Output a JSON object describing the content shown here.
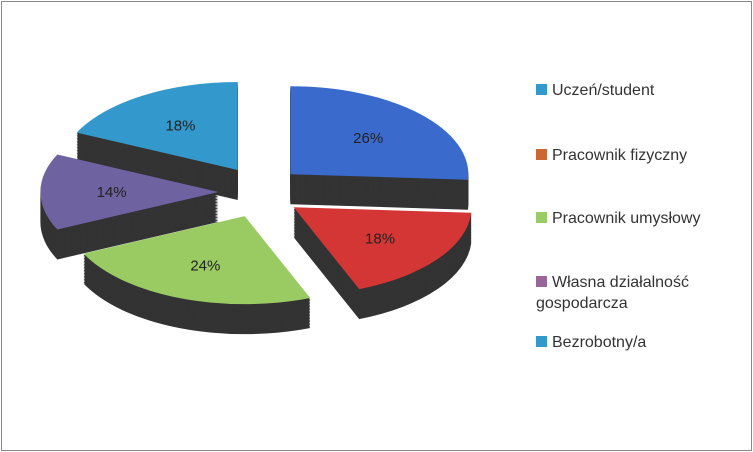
{
  "chart_data": {
    "type": "pie",
    "style": "3d-exploded",
    "categories": [
      "Uczeń/student",
      "Pracownik fizyczny",
      "Pracownik umysłowy",
      "Własna działalność gospodarcza",
      "Bezrobotny/a"
    ],
    "legend_lines": [
      [
        "Uczeń/student"
      ],
      [
        "Pracownik fizyczny"
      ],
      [
        "Pracownik umysłowy"
      ],
      [
        "Własna działalność",
        "gospodarcza"
      ],
      [
        "Bezrobotny/a"
      ]
    ],
    "values": [
      26,
      18,
      24,
      14,
      18
    ],
    "data_labels": [
      "26%",
      "18%",
      "24%",
      "14%",
      "18%"
    ],
    "slice_colors": [
      "#3a6acc",
      "#d43535",
      "#9acb63",
      "#6e62a0",
      "#3399cc"
    ],
    "legend_colors": [
      "#3399cc",
      "#cc6633",
      "#99cc66",
      "#996699",
      "#3399cc"
    ],
    "legend_placement": "right"
  }
}
